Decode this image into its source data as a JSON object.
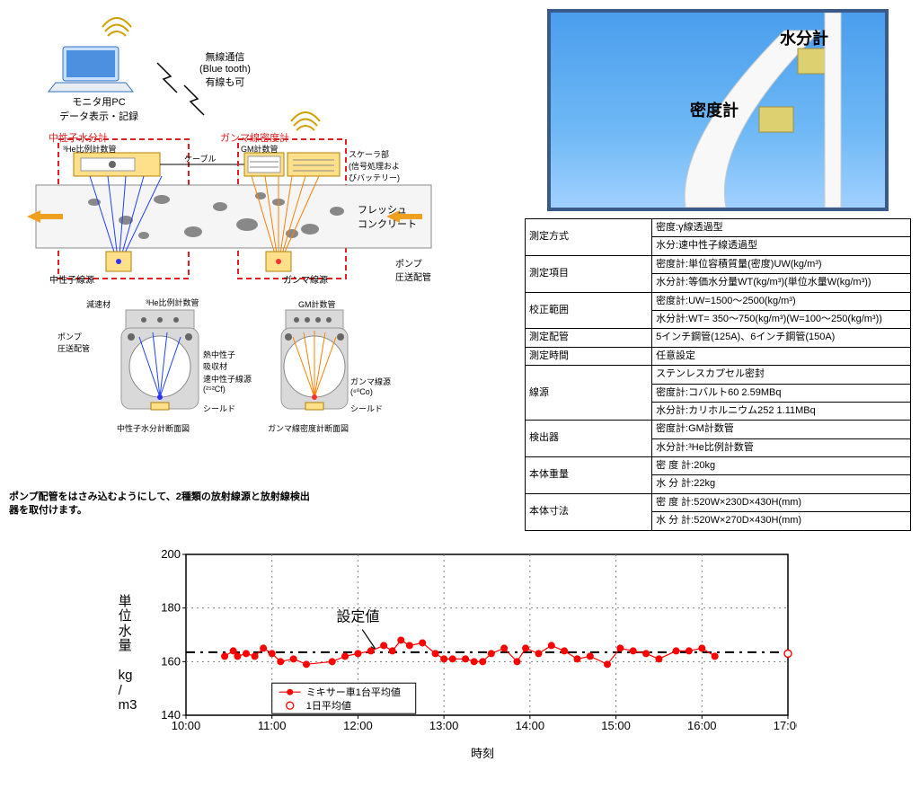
{
  "left": {
    "pc_label": "モニタ用PC\nデータ表示・記録",
    "wireless_label": "無線通信\n(Blue tooth)\n有線も可",
    "neutron_meter": "中性子水分計",
    "he_tube": "³He比例計数管",
    "cable": "ケーブル",
    "gamma_meter": "ガンマ線密度計",
    "gm_tube": "GM計数管",
    "scaler": "スケーラ部\n(信号処理およ\nびバッテリー)",
    "fresh_concrete": "フレッシュ\nコンクリート",
    "neutron_src": "中性子線源",
    "gamma_src": "ガンマ線源",
    "pump_pipe": "ポンプ\n圧送配管",
    "moderator": "減速材",
    "thermal_absorber": "熱中性子\n吸収材",
    "fast_neutron_src": "速中性子線源\n(²⁵²Cf)",
    "shield": "シールド",
    "gamma_src2": "ガンマ線源\n(⁶⁰Co)",
    "cross1": "中性子水分計断面図",
    "cross2": "ガンマ線密度計断面図",
    "note": "ポンプ配管をはさみ込むようにして、2種類の放射線源と放射線検出\n器を取付けます。"
  },
  "photo": {
    "moisture": "水分計",
    "density": "密度計"
  },
  "spec": {
    "rows": [
      [
        "測定方式",
        "密度:γ線透過型"
      ],
      [
        "",
        "水分:速中性子線透過型"
      ],
      [
        "測定項目",
        "密度計:単位容積質量(密度)UW(kg/m³)"
      ],
      [
        "",
        "水分計:等価水分量WT(kg/m³)(単位水量W(kg/m³))"
      ],
      [
        "校正範囲",
        "密度計:UW=1500～2500(kg/m³)"
      ],
      [
        "",
        "水分計:WT= 350～750(kg/m³)(W=100～250(kg/m³))"
      ],
      [
        "測定配管",
        "5インチ鋼管(125A)、6インチ鋼管(150A)"
      ],
      [
        "測定時間",
        "任意設定"
      ],
      [
        "線源",
        "ステンレスカプセル密封"
      ],
      [
        "",
        "密度計:コバルト60 2.59MBq"
      ],
      [
        "",
        "水分計:カリホルニウム252 1.11MBq"
      ],
      [
        "検出器",
        "密度計:GM計数管"
      ],
      [
        "",
        "水分計:³He比例計数管"
      ],
      [
        "本体重量",
        "密 度 計:20kg"
      ],
      [
        "",
        "水 分 計:22kg"
      ],
      [
        "本体寸法",
        "密 度 計:520W×230D×430H(mm)"
      ],
      [
        "",
        "水 分 計:520W×270D×430H(mm)"
      ]
    ]
  },
  "chart": {
    "type": "scatter+line",
    "ylabel": "単\n位\n水\n量\n\nkg\n/\nm3",
    "xlabel": "時刻",
    "ylim": [
      140,
      200
    ],
    "ytick_step": 20,
    "xlim": [
      10,
      17
    ],
    "xtick_step": 1,
    "xtick_labels": [
      "10:00",
      "11:00",
      "12:00",
      "13:00",
      "14:00",
      "15:00",
      "16:00",
      "17:00"
    ],
    "setpoint": {
      "label": "設定値",
      "y": 163.5,
      "color": "#000000",
      "dash": "10,6,3,6"
    },
    "legend": {
      "mixer": "ミキサー車1台平均値",
      "daily": "1日平均値",
      "mixer_color": "#ff0000",
      "daily_color": "#ff0000"
    },
    "series_line_color": "#ff0000",
    "marker_color": "#ff0000",
    "open_marker_color": "#ff0000",
    "grid_color": "#808080",
    "border_color": "#000000",
    "background_color": "#ffffff",
    "marker_radius": 3.5,
    "open_marker_radius": 4,
    "font_size_axis": 13,
    "font_size_label": 15,
    "data": [
      [
        10.45,
        162
      ],
      [
        10.55,
        164
      ],
      [
        10.6,
        162
      ],
      [
        10.7,
        163
      ],
      [
        10.8,
        162
      ],
      [
        10.9,
        165
      ],
      [
        11.0,
        163
      ],
      [
        11.1,
        160
      ],
      [
        11.25,
        161
      ],
      [
        11.4,
        159
      ],
      [
        11.7,
        160
      ],
      [
        11.85,
        162
      ],
      [
        12.0,
        163
      ],
      [
        12.15,
        164
      ],
      [
        12.3,
        166
      ],
      [
        12.4,
        164
      ],
      [
        12.5,
        168
      ],
      [
        12.6,
        166
      ],
      [
        12.75,
        167
      ],
      [
        12.9,
        163
      ],
      [
        13.0,
        161
      ],
      [
        13.1,
        161
      ],
      [
        13.25,
        161
      ],
      [
        13.35,
        160
      ],
      [
        13.45,
        160
      ],
      [
        13.55,
        163
      ],
      [
        13.7,
        165
      ],
      [
        13.85,
        160
      ],
      [
        13.95,
        165
      ],
      [
        14.1,
        163
      ],
      [
        14.25,
        166
      ],
      [
        14.4,
        164
      ],
      [
        14.55,
        161
      ],
      [
        14.7,
        162
      ],
      [
        14.9,
        159
      ],
      [
        15.05,
        165
      ],
      [
        15.2,
        164
      ],
      [
        15.35,
        163
      ],
      [
        15.5,
        161
      ],
      [
        15.7,
        164
      ],
      [
        15.85,
        164
      ],
      [
        16.0,
        165
      ],
      [
        16.15,
        162
      ]
    ],
    "open_point": [
      17.0,
      163
    ]
  }
}
